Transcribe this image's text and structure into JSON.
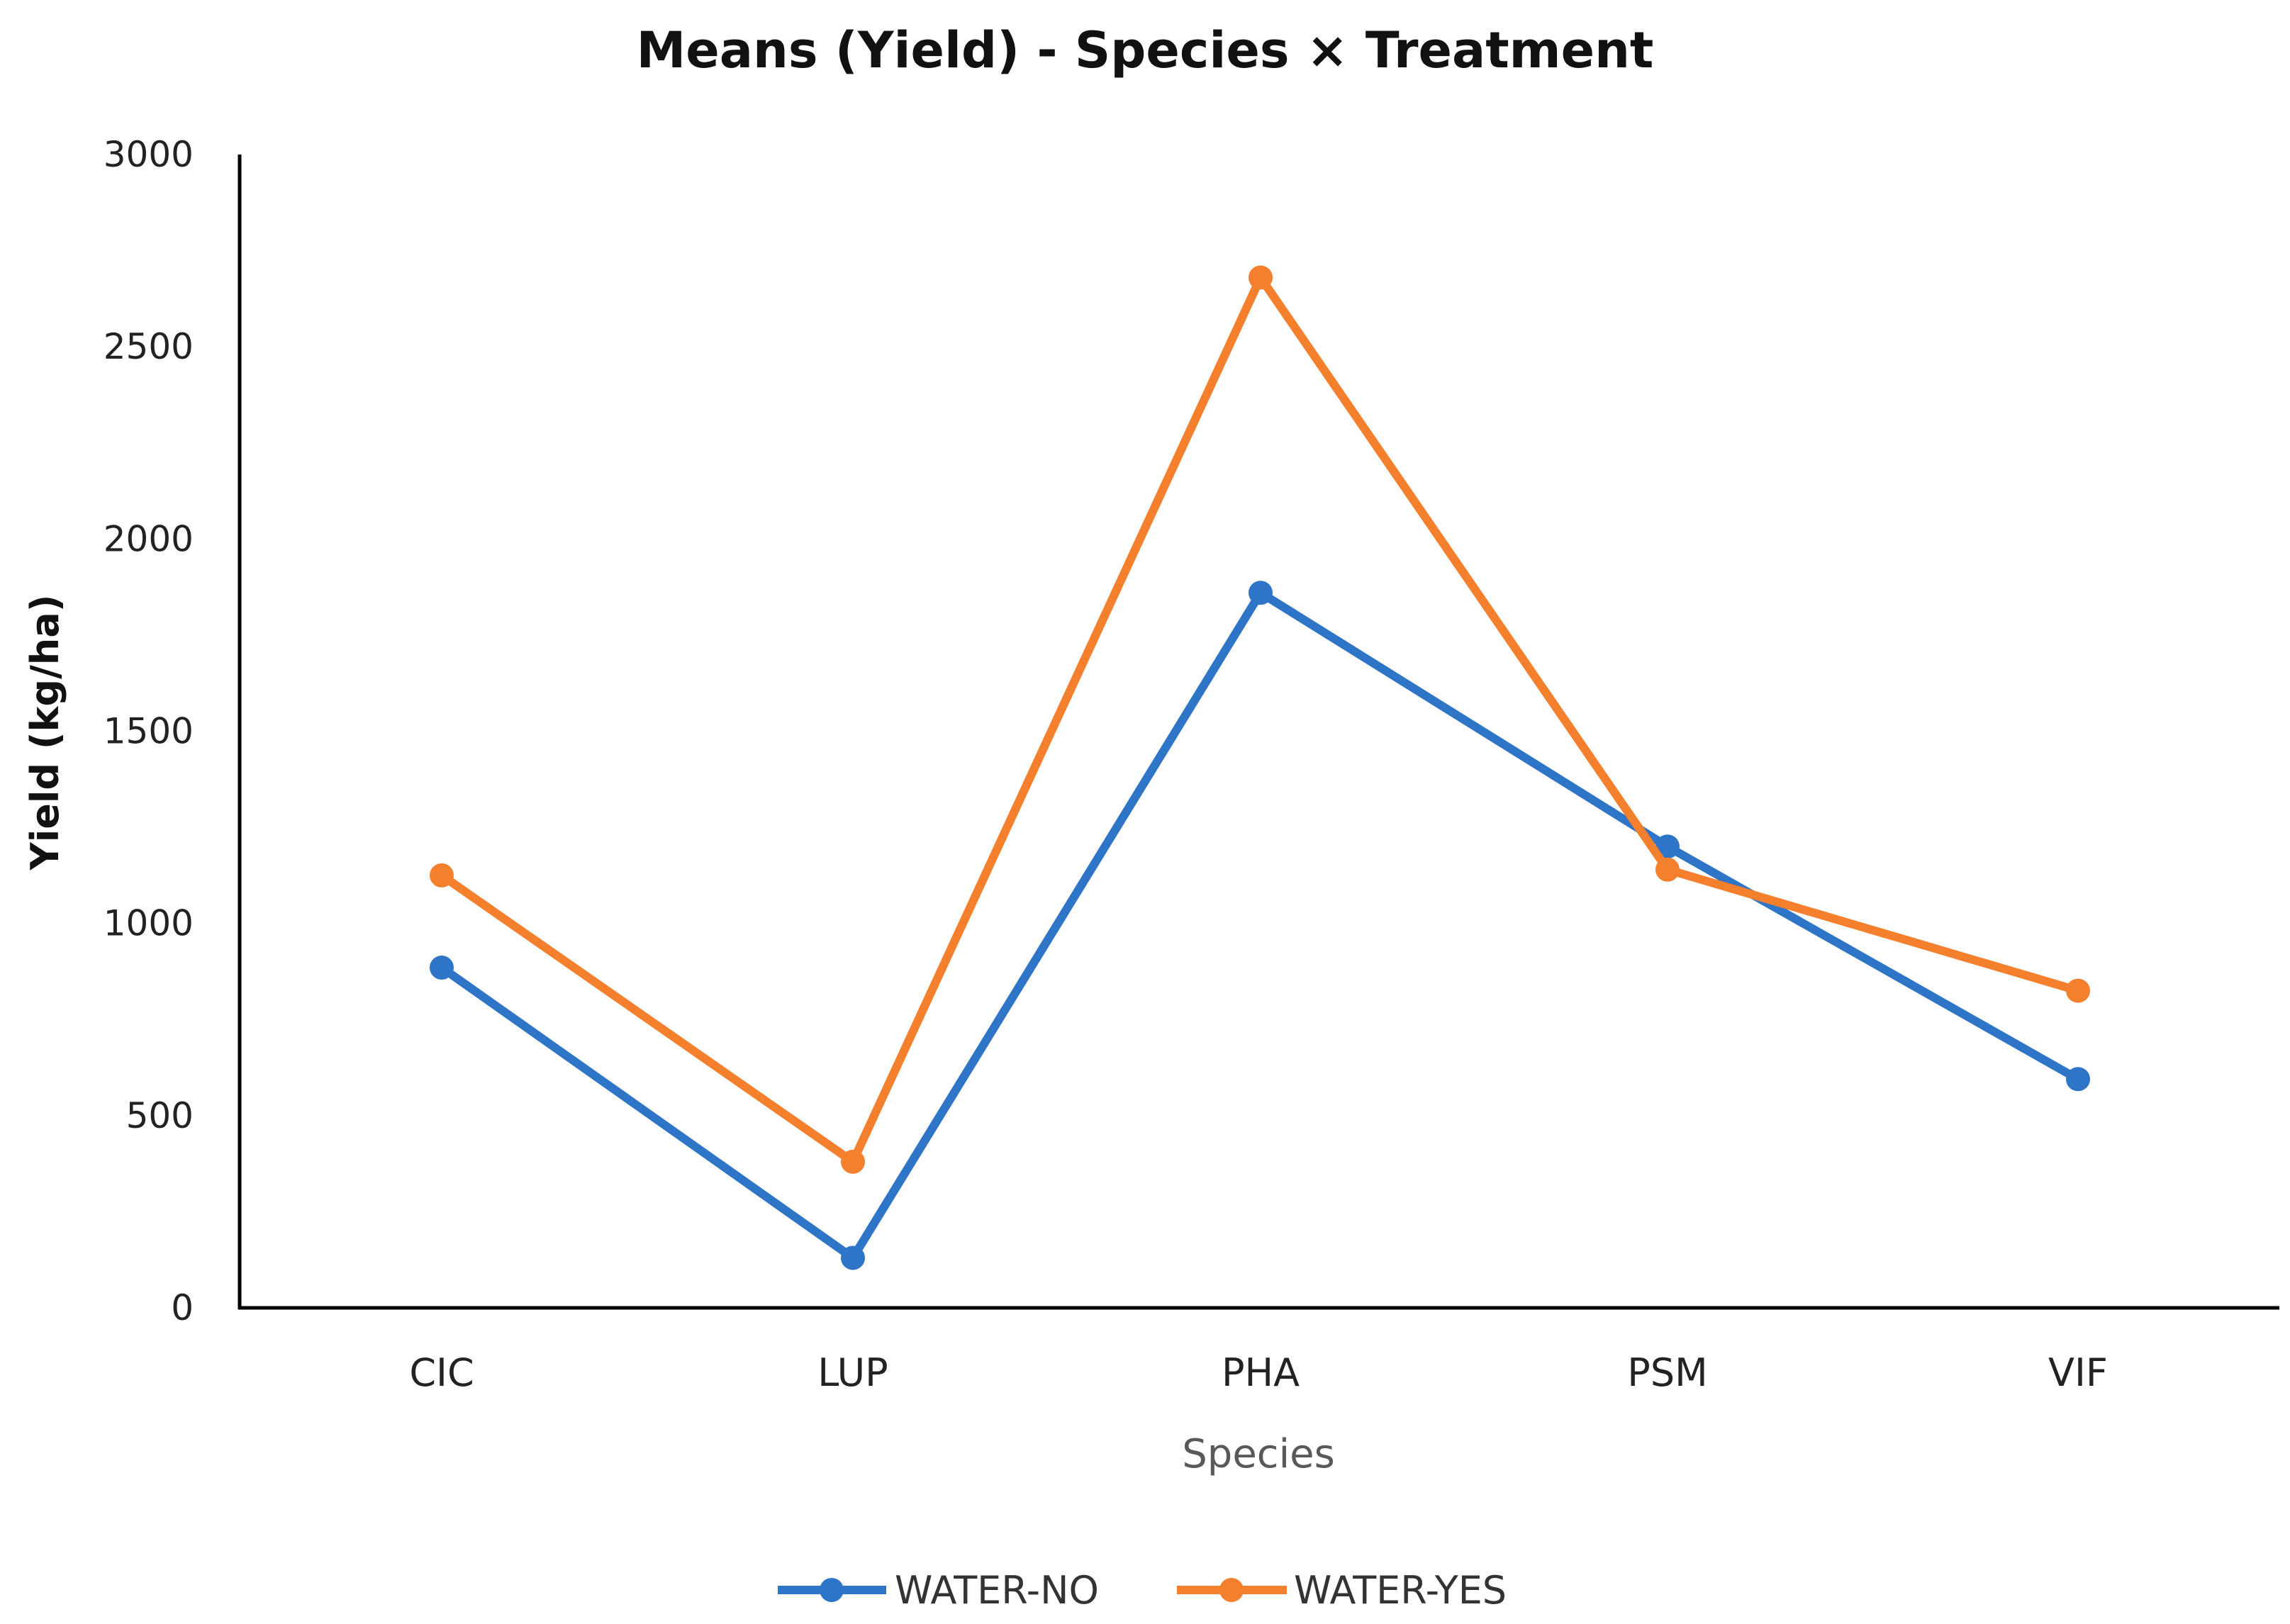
{
  "chart_data": {
    "type": "line",
    "title": "Means (Yield) - Species × Treatment",
    "xlabel": "Species",
    "ylabel": "Yield (kg/ha)",
    "categories": [
      "CIC",
      "LUP",
      "PHA",
      "PSM",
      "VIF"
    ],
    "ylim": [
      0,
      3000
    ],
    "yticks": [
      0,
      500,
      1000,
      1500,
      2000,
      2500,
      3000
    ],
    "grid": false,
    "legend_position": "bottom",
    "series": [
      {
        "name": "WATER-NO",
        "color": "#2E75C8",
        "values": [
          885,
          130,
          1860,
          1200,
          595
        ]
      },
      {
        "name": "WATER-YES",
        "color": "#F47F2D",
        "values": [
          1125,
          380,
          2680,
          1140,
          825
        ]
      }
    ]
  }
}
